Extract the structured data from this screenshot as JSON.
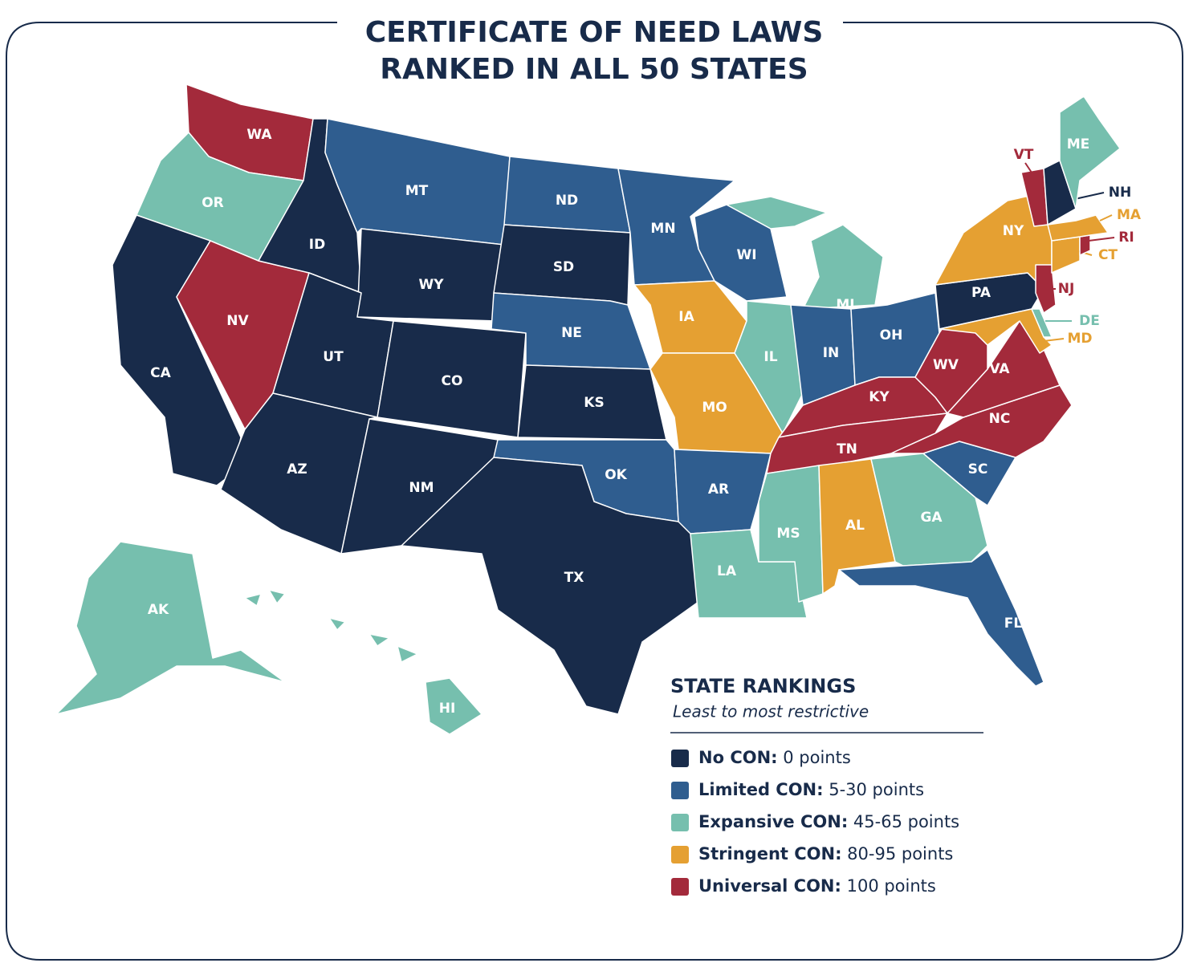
{
  "title_lines": [
    "CERTIFICATE OF NEED LAWS",
    "RANKED IN ALL 50 STATES"
  ],
  "legend": {
    "title": "STATE RANKINGS",
    "subtitle": "Least to most restrictive",
    "items": [
      {
        "name": "No CON:",
        "range": "0 points",
        "color": "#182b4a"
      },
      {
        "name": "Limited CON:",
        "range": "5-30 points",
        "color": "#2f5d8f"
      },
      {
        "name": "Expansive CON:",
        "range": "45-65 points",
        "color": "#76bfae"
      },
      {
        "name": "Stringent CON:",
        "range": "80-95 points",
        "color": "#e5a032"
      },
      {
        "name": "Universal CON:",
        "range": "100 points",
        "color": "#a32a3b"
      }
    ]
  },
  "states": [
    {
      "label": "WA",
      "tier": 4
    },
    {
      "label": "OR",
      "tier": 2
    },
    {
      "label": "CA",
      "tier": 0
    },
    {
      "label": "NV",
      "tier": 4
    },
    {
      "label": "ID",
      "tier": 0
    },
    {
      "label": "MT",
      "tier": 1
    },
    {
      "label": "WY",
      "tier": 0
    },
    {
      "label": "UT",
      "tier": 0
    },
    {
      "label": "CO",
      "tier": 0
    },
    {
      "label": "AZ",
      "tier": 0
    },
    {
      "label": "NM",
      "tier": 0
    },
    {
      "label": "ND",
      "tier": 1
    },
    {
      "label": "SD",
      "tier": 0
    },
    {
      "label": "NE",
      "tier": 1
    },
    {
      "label": "KS",
      "tier": 0
    },
    {
      "label": "OK",
      "tier": 1
    },
    {
      "label": "TX",
      "tier": 0
    },
    {
      "label": "MN",
      "tier": 1
    },
    {
      "label": "IA",
      "tier": 3
    },
    {
      "label": "MO",
      "tier": 3
    },
    {
      "label": "AR",
      "tier": 1
    },
    {
      "label": "LA",
      "tier": 2
    },
    {
      "label": "WI",
      "tier": 1
    },
    {
      "label": "IL",
      "tier": 2
    },
    {
      "label": "MI",
      "tier": 2
    },
    {
      "label": "IN",
      "tier": 1
    },
    {
      "label": "OH",
      "tier": 1
    },
    {
      "label": "KY",
      "tier": 4
    },
    {
      "label": "TN",
      "tier": 4
    },
    {
      "label": "MS",
      "tier": 2
    },
    {
      "label": "AL",
      "tier": 3
    },
    {
      "label": "GA",
      "tier": 2
    },
    {
      "label": "FL",
      "tier": 1
    },
    {
      "label": "SC",
      "tier": 1
    },
    {
      "label": "NC",
      "tier": 4
    },
    {
      "label": "VA",
      "tier": 4
    },
    {
      "label": "WV",
      "tier": 4
    },
    {
      "label": "PA",
      "tier": 0
    },
    {
      "label": "NY",
      "tier": 3
    },
    {
      "label": "MD",
      "tier": 3
    },
    {
      "label": "DE",
      "tier": 2
    },
    {
      "label": "NJ",
      "tier": 4
    },
    {
      "label": "CT",
      "tier": 3
    },
    {
      "label": "RI",
      "tier": 4
    },
    {
      "label": "MA",
      "tier": 3
    },
    {
      "label": "VT",
      "tier": 4
    },
    {
      "label": "NH",
      "tier": 0
    },
    {
      "label": "ME",
      "tier": 2
    },
    {
      "label": "AK",
      "tier": 2
    },
    {
      "label": "HI",
      "tier": 2
    }
  ]
}
